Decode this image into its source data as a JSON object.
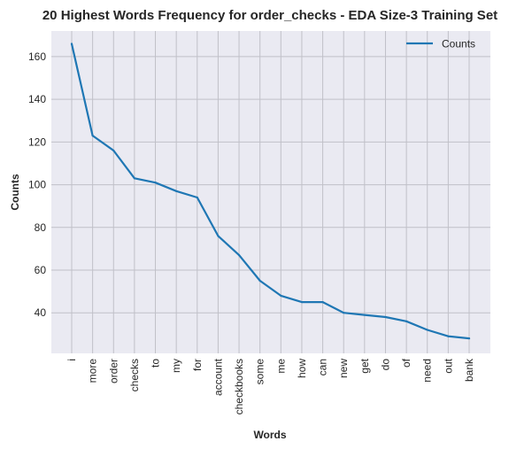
{
  "chart_data": {
    "type": "line",
    "title": "20 Highest Words Frequency for order_checks - EDA Size-3 Training Set",
    "xlabel": "Words",
    "ylabel": "Counts",
    "categories": [
      "i",
      "more",
      "order",
      "checks",
      "to",
      "my",
      "for",
      "account",
      "checkbooks",
      "some",
      "me",
      "how",
      "can",
      "new",
      "get",
      "do",
      "of",
      "need",
      "out",
      "bank"
    ],
    "series": [
      {
        "name": "Counts",
        "values": [
          166,
          123,
          116,
          103,
          101,
          97,
          94,
          76,
          67,
          55,
          48,
          45,
          45,
          40,
          39,
          38,
          36,
          32,
          29,
          28
        ]
      }
    ],
    "ylim": [
      21,
      172
    ],
    "yticks": [
      40,
      60,
      80,
      100,
      120,
      140,
      160
    ],
    "grid": true,
    "legend": "top-right",
    "colors": {
      "line": "#1f77b4",
      "background": "#eaeaf2",
      "grid": "#c0c0c8"
    }
  }
}
